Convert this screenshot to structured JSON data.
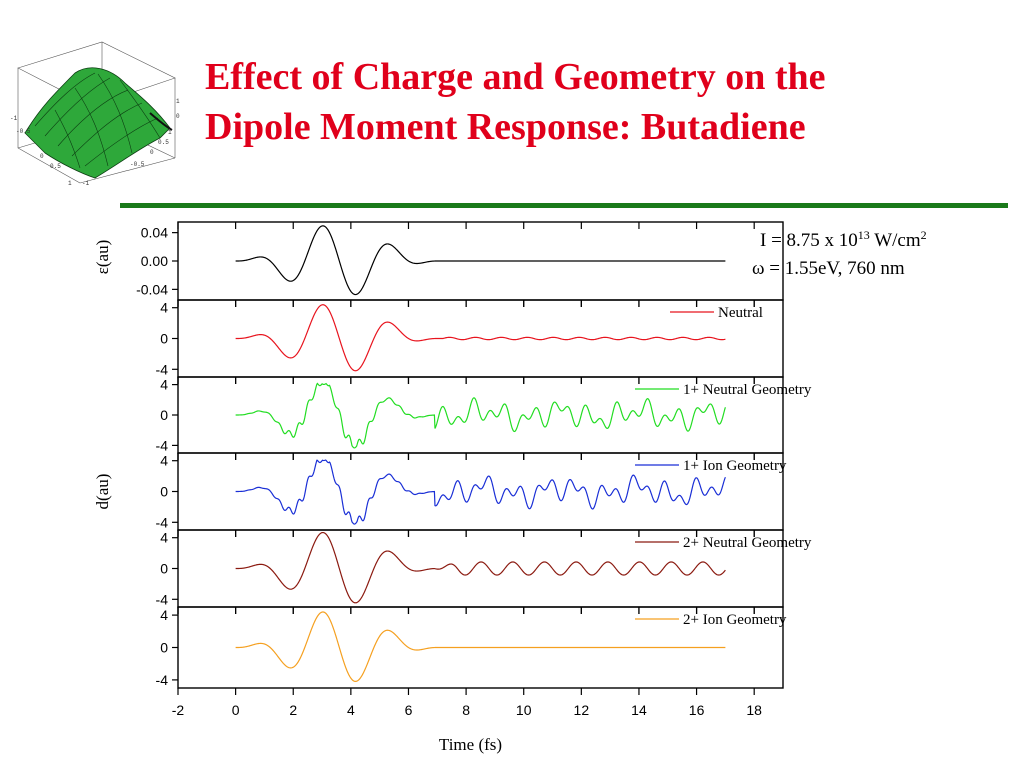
{
  "title": {
    "line1": "Effect of Charge and Geometry on the",
    "line2": "Dipole Moment Response: Butadiene"
  },
  "params": {
    "intensity_prefix": "I = 8.75 x 10",
    "intensity_exponent": "13",
    "intensity_unit": " W/cm",
    "intensity_unit_exponent": "2",
    "frequency": "ω = 1.55eV, 760 nm"
  },
  "colors": {
    "title": "#e0001b",
    "rule": "#1a7a1a",
    "field": "#000000",
    "neutral": "#e8141e",
    "ion1_neutral_geom": "#22dd22",
    "ion1_ion_geom": "#1a2fd6",
    "ion2_neutral_geom": "#8b1a10",
    "ion2_ion_geom": "#f5a020"
  },
  "chart_data": {
    "type": "line",
    "xlabel": "Time (fs)",
    "xlim": [
      -2,
      19
    ],
    "xticks": [
      "-2",
      "0",
      "2",
      "4",
      "6",
      "8",
      "10",
      "12",
      "14",
      "16",
      "18"
    ],
    "x_tick_values": [
      -2,
      0,
      2,
      4,
      6,
      8,
      10,
      12,
      14,
      16,
      18
    ],
    "x_end": 17,
    "panels": [
      {
        "name": "field",
        "ylabel": "ε(au)",
        "ylim": [
          -0.055,
          0.055
        ],
        "yticks": [
          0.04,
          0.0,
          -0.04
        ],
        "yticklabels": [
          "0.04",
          "0.00",
          "-0.04"
        ],
        "series": [
          {
            "name": "",
            "color": "#000000",
            "kind": "field",
            "amplitude": 0.052,
            "noise": 0,
            "noise_period": 1.1,
            "clip": 0
          }
        ]
      },
      {
        "name": "neutral",
        "ylabel": "",
        "ylim": [
          -5,
          5
        ],
        "yticks": [
          4,
          0,
          -4
        ],
        "yticklabels": [
          "4",
          "0",
          "-4"
        ],
        "series": [
          {
            "name": "Neutral",
            "color": "#e8141e",
            "kind": "response",
            "amplitude": 4.6,
            "noise": 0.15,
            "noise_period": 0.9,
            "clip": 0
          }
        ]
      },
      {
        "name": "ion1-neutral-geometry",
        "ylabel": "",
        "ylim": [
          -5,
          5
        ],
        "yticks": [
          4,
          0,
          -4
        ],
        "yticklabels": [
          "4",
          "0",
          "-4"
        ],
        "series": [
          {
            "name": "1+ Neutral Geometry",
            "color": "#22dd22",
            "kind": "irregular",
            "amplitude": 4.6,
            "noise": 1.0,
            "noise_period": 1.0,
            "clip": 4.1
          }
        ]
      },
      {
        "name": "ion1-ion-geometry",
        "ylabel": "d(au)",
        "ylim": [
          -5,
          5
        ],
        "yticks": [
          4,
          0,
          -4
        ],
        "yticklabels": [
          "4",
          "0",
          "-4"
        ],
        "series": [
          {
            "name": "1+ Ion Geometry",
            "color": "#1a2fd6",
            "kind": "irregular",
            "amplitude": 4.6,
            "noise": 1.0,
            "noise_period": 1.05,
            "clip": 4.0
          }
        ]
      },
      {
        "name": "ion2-neutral-geometry",
        "ylabel": "",
        "ylim": [
          -5,
          5
        ],
        "yticks": [
          4,
          0,
          -4
        ],
        "yticklabels": [
          "4",
          "0",
          "-4"
        ],
        "series": [
          {
            "name": "2+ Neutral Geometry",
            "color": "#8b1a10",
            "kind": "ringing",
            "amplitude": 4.9,
            "noise": 0.85,
            "noise_period": 1.1,
            "clip": 0
          }
        ]
      },
      {
        "name": "ion2-ion-geometry",
        "ylabel": "",
        "ylim": [
          -5,
          5
        ],
        "yticks": [
          4,
          0,
          -4
        ],
        "yticklabels": [
          "4",
          "0",
          "-4"
        ],
        "series": [
          {
            "name": "2+ Ion Geometry",
            "color": "#f5a020",
            "kind": "response",
            "amplitude": 4.6,
            "noise": 0,
            "noise_period": 1.1,
            "clip": 0
          }
        ]
      }
    ]
  }
}
